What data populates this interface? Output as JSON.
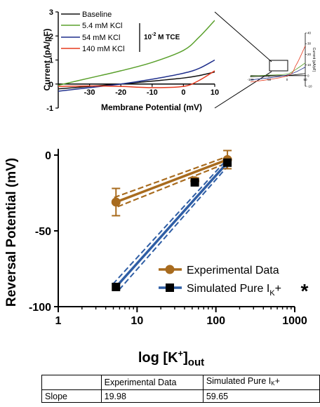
{
  "chart_data": [
    {
      "type": "line",
      "xlabel": "Membrane Potential (mV)",
      "ylabel": "Current (pA/pF)",
      "xlim": [
        -40,
        10
      ],
      "ylim": [
        -1,
        3
      ],
      "xticks": [
        "-30",
        "-20",
        "-10",
        "0",
        "10"
      ],
      "yticks": [
        "-1",
        "0",
        "1",
        "2",
        "3"
      ],
      "legend_position": "top-left",
      "legend_group_label": {
        "prefix": "10",
        "exponent": "-2",
        "suffix": " M TCE"
      },
      "series": [
        {
          "name": "Baseline",
          "color": "#111111",
          "x": [
            -40,
            -30,
            -20,
            -10,
            0,
            5,
            10
          ],
          "y": [
            -0.2,
            -0.1,
            0.0,
            0.12,
            0.25,
            0.35,
            0.5
          ]
        },
        {
          "name": "5.4 mM KCl",
          "color": "#5aa02c",
          "x": [
            -40,
            -30,
            -20,
            -10,
            0,
            5,
            10
          ],
          "y": [
            -0.05,
            0.25,
            0.55,
            0.9,
            1.4,
            1.95,
            2.65
          ]
        },
        {
          "name": "54 mM KCl",
          "color": "#1f2f8c",
          "x": [
            -40,
            -30,
            -20,
            -10,
            0,
            5,
            10
          ],
          "y": [
            -0.3,
            -0.15,
            0.0,
            0.2,
            0.45,
            0.65,
            1.0
          ]
        },
        {
          "name": "140 mM KCl",
          "color": "#e53a1e",
          "x": [
            -40,
            -30,
            -20,
            -10,
            0,
            5,
            10
          ],
          "y": [
            -0.1,
            -0.08,
            -0.1,
            -0.15,
            -0.1,
            0.15,
            0.55
          ]
        }
      ]
    },
    {
      "type": "line",
      "xlim": [
        -100,
        50
      ],
      "ylim": [
        -10,
        40
      ],
      "xticks": [
        "-100",
        "-50",
        "0",
        "50"
      ],
      "yticks": [
        "-10",
        "0",
        "10",
        "20",
        "30",
        "40"
      ],
      "ylabel": "Current (pA/pF)",
      "series": [
        {
          "name": "Baseline",
          "color": "#111111",
          "x": [
            -100,
            0,
            50
          ],
          "y": [
            -1,
            0.2,
            2
          ]
        },
        {
          "name": "5.4 mM KCl",
          "color": "#5aa02c",
          "x": [
            -100,
            -50,
            0,
            25,
            50
          ],
          "y": [
            -0.5,
            0.5,
            1.5,
            6,
            12
          ]
        },
        {
          "name": "54 mM KCl",
          "color": "#1f2f8c",
          "x": [
            -100,
            0,
            50
          ],
          "y": [
            -4,
            0.5,
            8
          ]
        },
        {
          "name": "140 mM KCl",
          "color": "#e53a1e",
          "x": [
            -100,
            0,
            25,
            50
          ],
          "y": [
            -6,
            -0.2,
            10,
            28
          ]
        }
      ]
    },
    {
      "type": "scatter",
      "xlabel": "log [K+]out",
      "ylabel": "Reversal Potential (mV)",
      "xscale": "log",
      "xlim": [
        1,
        1000
      ],
      "ylim": [
        -100,
        5
      ],
      "xticks": [
        "1",
        "10",
        "100",
        "1000"
      ],
      "yticks": [
        "0",
        "-50",
        "-100"
      ],
      "legend_position": "bottom-right",
      "series": [
        {
          "name": "Experimental Data",
          "color": "#a86b1e",
          "marker": "circle",
          "x": [
            5.4,
            54,
            140
          ],
          "y": [
            -31,
            -17,
            -3
          ],
          "yerr": [
            9,
            2,
            6
          ],
          "fit": {
            "x": [
              5.4,
              140
            ],
            "y": [
              -31,
              -3
            ]
          }
        },
        {
          "name_parts": {
            "main": "Simulated Pure I",
            "sub": "K",
            "sup": "+"
          },
          "annotation": "*",
          "color": "#2f5ea5",
          "marker": "square",
          "x": [
            5.4,
            54,
            140
          ],
          "y": [
            -87,
            -18,
            -5
          ],
          "fit": {
            "x": [
              5.4,
              140
            ],
            "y": [
              -87,
              -5
            ]
          }
        }
      ]
    },
    {
      "type": "table",
      "header": [
        "",
        "Experimental Data",
        "Simulated Pure I"
      ],
      "header_sub": "K",
      "header_sup": "+",
      "rows": [
        [
          "Slope",
          "19.98",
          "59.65"
        ]
      ]
    }
  ]
}
